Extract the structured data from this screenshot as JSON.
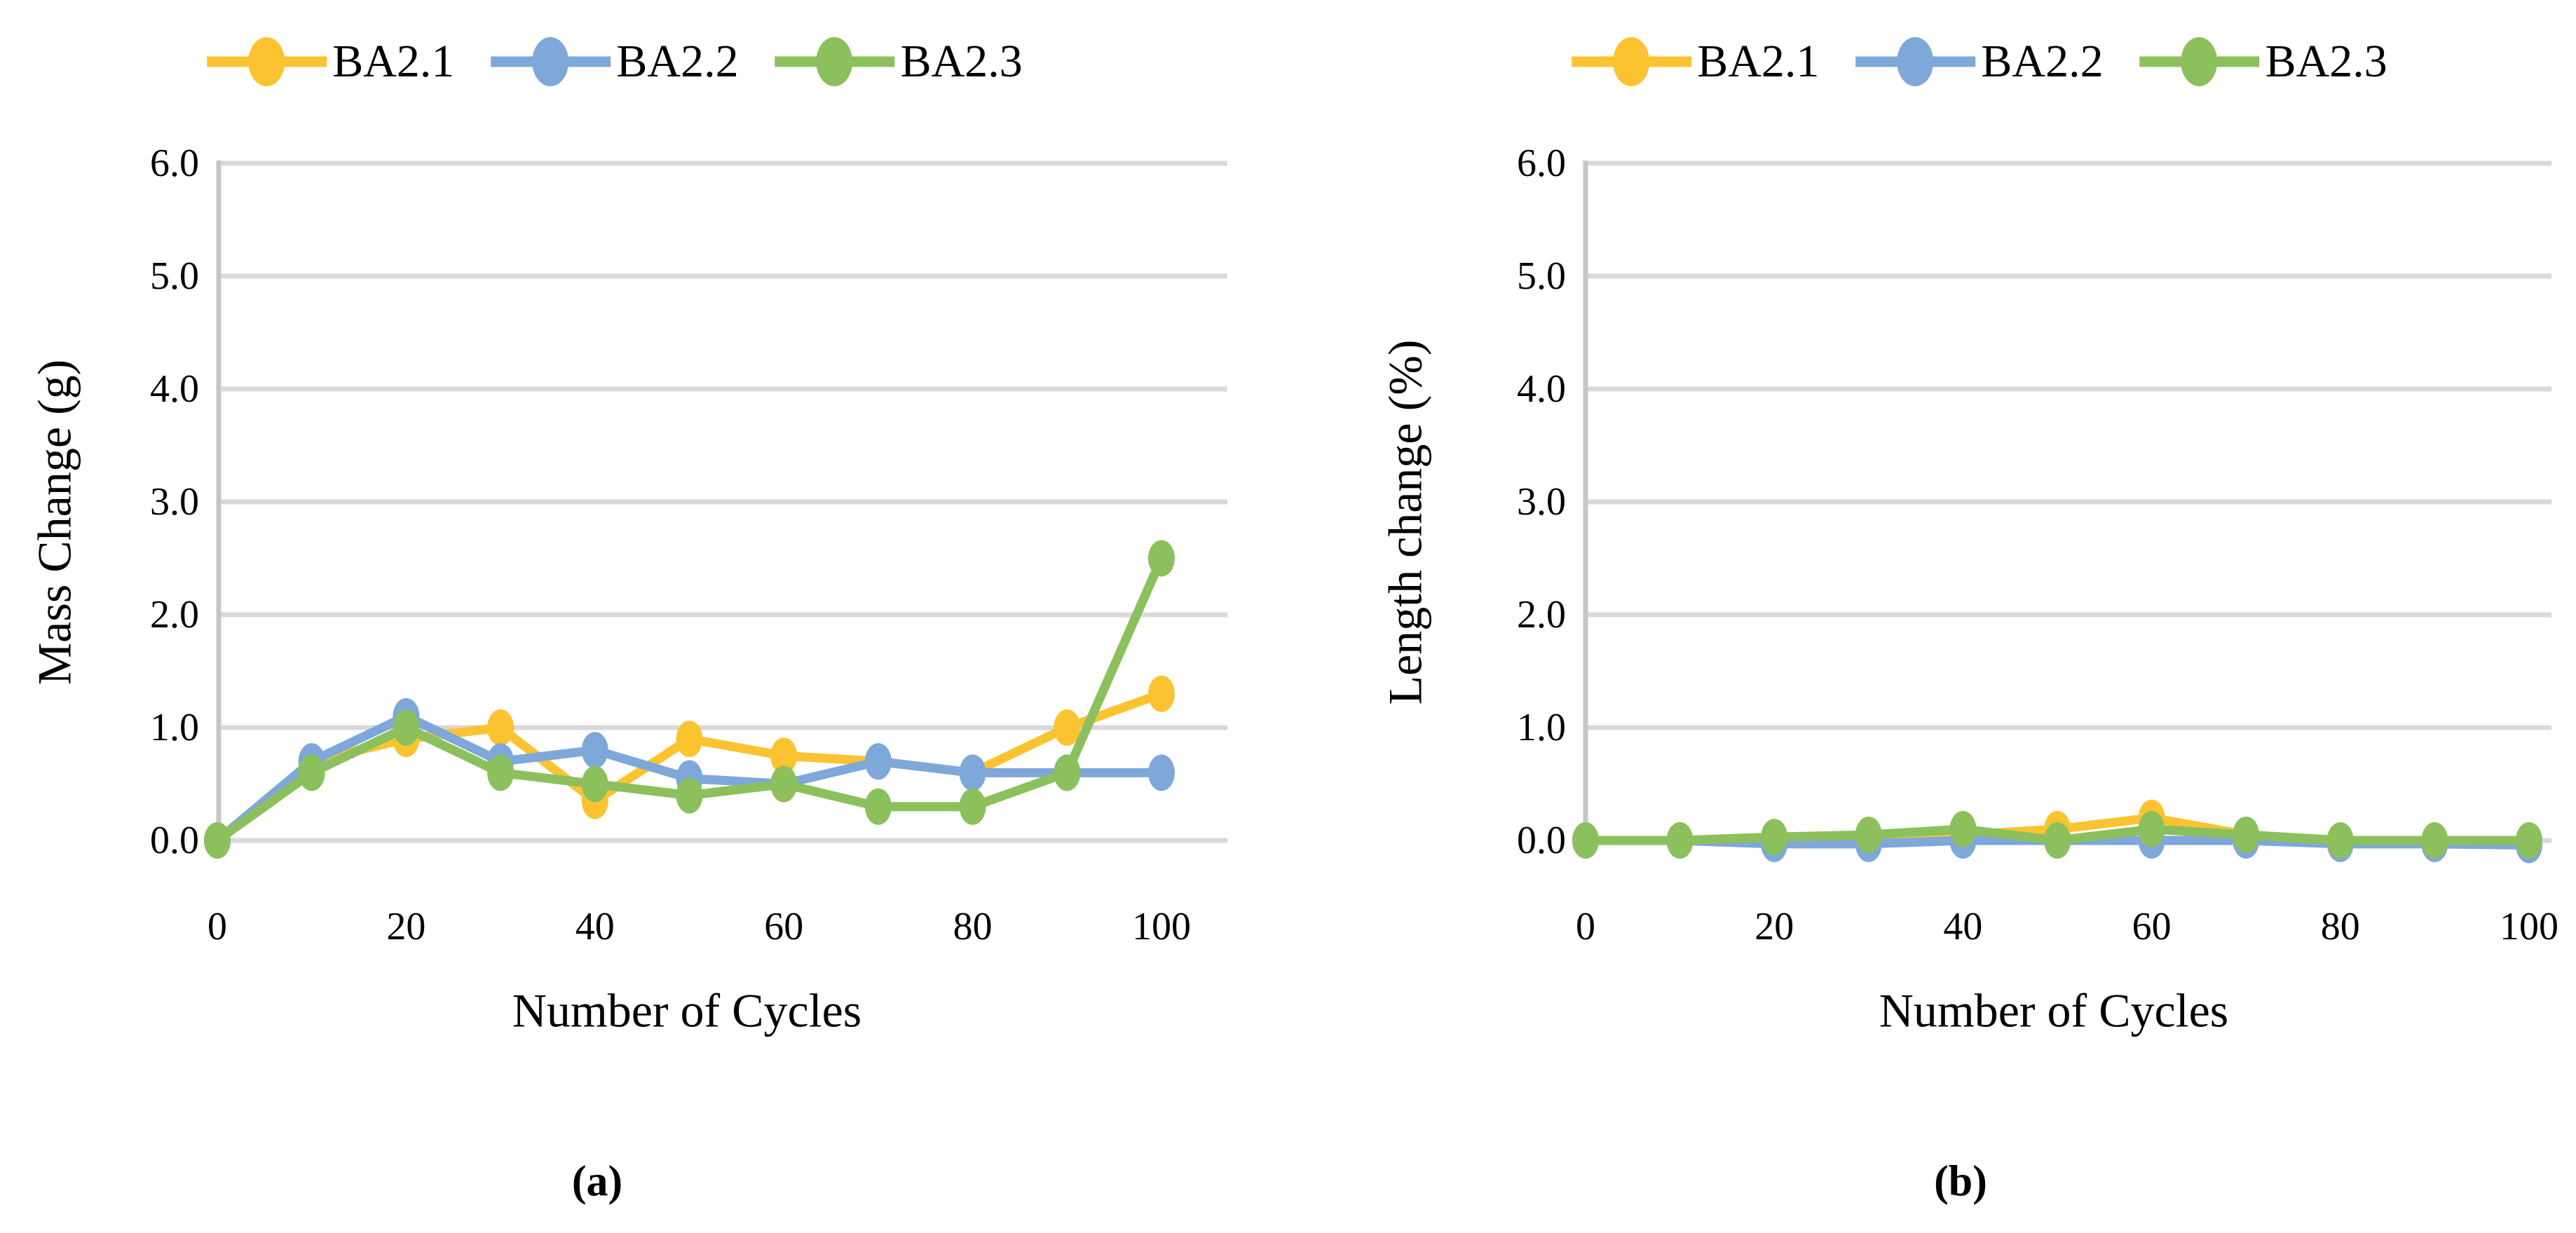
{
  "legend": {
    "items": [
      "BA2.1",
      "BA2.2",
      "BA2.3"
    ]
  },
  "colors": {
    "BA2.1": "#FCC331",
    "BA2.2": "#7EA7DA",
    "BA2.3": "#8CC05C",
    "gridline": "#D9D9D9",
    "axis_line": "#C6C6C6",
    "text": "#000000"
  },
  "chart_data": [
    {
      "type": "line",
      "caption": "(a)",
      "xlabel": "Number of Cycles",
      "ylabel": "Mass Change (g)",
      "x": [
        0,
        10,
        20,
        30,
        40,
        50,
        60,
        70,
        80,
        90,
        100
      ],
      "x_tick_labels": [
        "0",
        "20",
        "40",
        "60",
        "80",
        "100"
      ],
      "x_ticks": [
        0,
        20,
        40,
        60,
        80,
        100
      ],
      "y_tick_labels": [
        "0.0",
        "1.0",
        "2.0",
        "3.0",
        "4.0",
        "5.0",
        "6.0"
      ],
      "y_ticks": [
        0,
        1,
        2,
        3,
        4,
        5,
        6
      ],
      "ylim": [
        0,
        6
      ],
      "xlim": [
        0,
        107
      ],
      "grid": true,
      "legend_position": "top",
      "series": [
        {
          "name": "BA2.1",
          "color": "#FCC331",
          "values": [
            0.0,
            0.7,
            0.9,
            1.0,
            0.35,
            0.9,
            0.75,
            0.7,
            0.6,
            1.0,
            1.3
          ]
        },
        {
          "name": "BA2.2",
          "color": "#7EA7DA",
          "values": [
            0.0,
            0.7,
            1.1,
            0.7,
            0.8,
            0.55,
            0.5,
            0.7,
            0.6,
            0.6,
            0.6
          ]
        },
        {
          "name": "BA2.3",
          "color": "#8CC05C",
          "values": [
            0.0,
            0.6,
            1.0,
            0.6,
            0.5,
            0.4,
            0.5,
            0.3,
            0.3,
            0.6,
            2.5
          ]
        }
      ]
    },
    {
      "type": "line",
      "caption": "(b)",
      "xlabel": "Number of Cycles",
      "ylabel": "Length change (%)",
      "x": [
        0,
        10,
        20,
        30,
        40,
        50,
        60,
        70,
        80,
        90,
        100
      ],
      "x_tick_labels": [
        "0",
        "20",
        "40",
        "60",
        "80",
        "100"
      ],
      "x_ticks": [
        0,
        20,
        40,
        60,
        80,
        100
      ],
      "y_tick_labels": [
        "0.0",
        "1.0",
        "2.0",
        "3.0",
        "4.0",
        "5.0",
        "6.0"
      ],
      "y_ticks": [
        0,
        1,
        2,
        3,
        4,
        5,
        6
      ],
      "ylim": [
        0,
        6
      ],
      "xlim": [
        0,
        102.5
      ],
      "grid": true,
      "legend_position": "top",
      "series": [
        {
          "name": "BA2.1",
          "color": "#FCC331",
          "values": [
            0.0,
            0.0,
            0.0,
            0.0,
            0.05,
            0.1,
            0.2,
            0.05,
            0.0,
            0.0,
            0.0
          ]
        },
        {
          "name": "BA2.2",
          "color": "#7EA7DA",
          "values": [
            0.0,
            0.0,
            -0.03,
            -0.03,
            0.0,
            0.0,
            0.0,
            0.0,
            -0.03,
            -0.03,
            -0.04
          ]
        },
        {
          "name": "BA2.3",
          "color": "#8CC05C",
          "values": [
            0.0,
            0.0,
            0.03,
            0.05,
            0.1,
            0.0,
            0.1,
            0.05,
            0.0,
            0.0,
            0.0
          ]
        }
      ]
    }
  ]
}
